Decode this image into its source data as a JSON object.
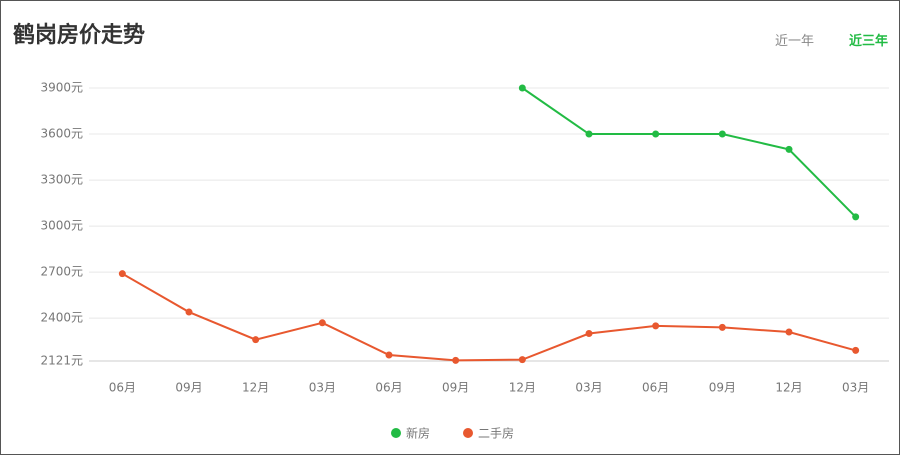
{
  "header": {
    "title": "鹤岗房价走势",
    "tabs": [
      "近一年",
      "近三年"
    ],
    "active_tab": 1
  },
  "chart_data": {
    "type": "line",
    "categories": [
      "06月",
      "09月",
      "12月",
      "03月",
      "06月",
      "09月",
      "12月",
      "03月",
      "06月",
      "09月",
      "12月",
      "03月"
    ],
    "series": [
      {
        "name": "新房",
        "color": "#22bb44",
        "values": [
          null,
          null,
          null,
          null,
          null,
          null,
          3900,
          3600,
          3600,
          3600,
          3500,
          3060
        ]
      },
      {
        "name": "二手房",
        "color": "#e8582f",
        "values": [
          2690,
          2440,
          2260,
          2370,
          2160,
          2125,
          2130,
          2300,
          2350,
          2340,
          2310,
          2190
        ]
      }
    ],
    "ylim": [
      2121,
      3900
    ],
    "yticks": [
      {
        "value": 2121,
        "label": "2121元"
      },
      {
        "value": 2400,
        "label": "2400元"
      },
      {
        "value": 2700,
        "label": "2700元"
      },
      {
        "value": 3000,
        "label": "3000元"
      },
      {
        "value": 3300,
        "label": "3300元"
      },
      {
        "value": 3600,
        "label": "3600元"
      },
      {
        "value": 3900,
        "label": "3900元"
      }
    ],
    "grid": true,
    "legend": "bottom"
  }
}
